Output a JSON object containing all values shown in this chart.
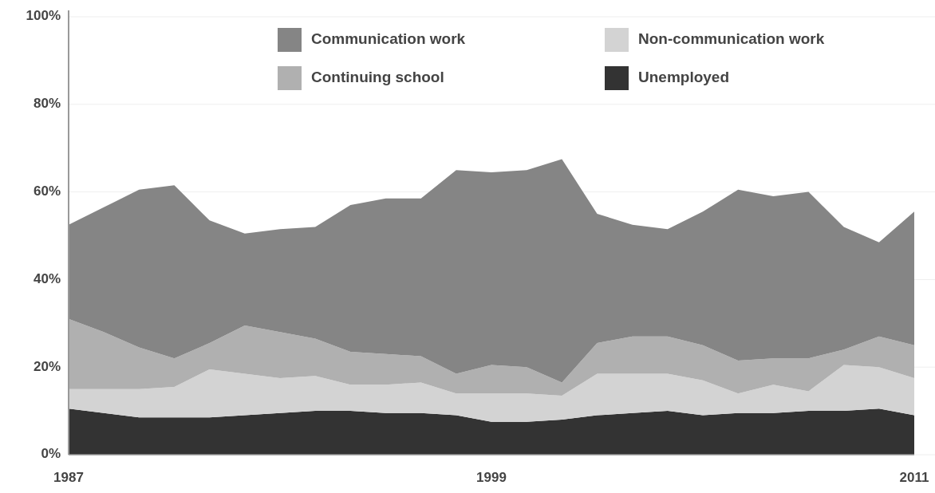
{
  "chart_data": {
    "type": "area",
    "stacked": true,
    "x": [
      1987,
      1988,
      1989,
      1990,
      1991,
      1992,
      1993,
      1994,
      1995,
      1996,
      1997,
      1998,
      1999,
      2000,
      2001,
      2002,
      2003,
      2004,
      2005,
      2006,
      2007,
      2008,
      2009,
      2010,
      2011
    ],
    "series": [
      {
        "name": "Unemployed",
        "color": "#333333",
        "values": [
          10.5,
          9.5,
          8.5,
          8.5,
          8.5,
          9,
          9.5,
          10,
          10,
          9.5,
          9.5,
          9,
          7.5,
          7.5,
          8,
          9,
          9.5,
          10,
          9,
          9.5,
          9.5,
          10,
          10,
          10.5,
          9
        ]
      },
      {
        "name": "Non-communication work",
        "color": "#d3d3d3",
        "values": [
          4.5,
          5.5,
          6.5,
          7,
          11,
          9.5,
          8,
          8,
          6,
          6.5,
          7,
          5,
          6.5,
          6.5,
          5.5,
          9.5,
          9,
          8.5,
          8,
          4.5,
          6.5,
          4.5,
          10.5,
          9.5,
          8.5
        ]
      },
      {
        "name": "Continuing school",
        "color": "#b0b0b0",
        "values": [
          16,
          13,
          9.5,
          6.5,
          6,
          11,
          10.5,
          8.5,
          7.5,
          7,
          6,
          4.5,
          6.5,
          6,
          3,
          7,
          8.5,
          8.5,
          8,
          7.5,
          6,
          7.5,
          3.5,
          7,
          7.5
        ]
      },
      {
        "name": "Communication work",
        "color": "#858585",
        "values": [
          21.5,
          28.5,
          36,
          39.5,
          28,
          21,
          23.5,
          25.5,
          33.5,
          35.5,
          36,
          46.5,
          44,
          45,
          51,
          29.5,
          25.5,
          24.5,
          30.5,
          39,
          37,
          38,
          28,
          21.5,
          30.5
        ]
      }
    ],
    "xlim": [
      1987,
      2011
    ],
    "xticks": [
      1987,
      1999,
      2011
    ],
    "ylim": [
      0,
      100
    ],
    "yticks": [
      {
        "value": 0,
        "label": "0%"
      },
      {
        "value": 20,
        "label": "20%"
      },
      {
        "value": 40,
        "label": "40%"
      },
      {
        "value": 60,
        "label": "60%"
      },
      {
        "value": 80,
        "label": "80%"
      },
      {
        "value": 100,
        "label": "100%"
      }
    ],
    "grid": "y",
    "legend": "top"
  }
}
